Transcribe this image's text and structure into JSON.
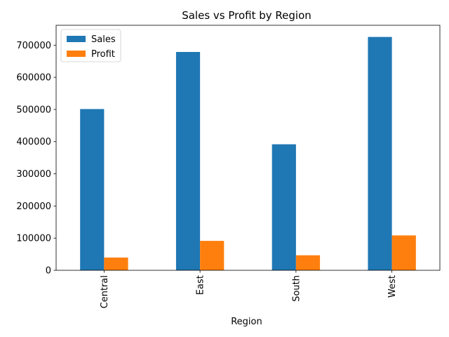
{
  "chart_data": {
    "type": "bar",
    "title": "Sales vs Profit by Region",
    "xlabel": "Region",
    "ylabel": "",
    "categories": [
      "Central",
      "East",
      "South",
      "West"
    ],
    "series": [
      {
        "name": "Sales",
        "values": [
          501240,
          678781,
          391722,
          725458
        ],
        "color": "#1f77b4"
      },
      {
        "name": "Profit",
        "values": [
          39706,
          91523,
          46749,
          108418
        ],
        "color": "#ff7f0e"
      }
    ],
    "ylim": [
      0,
      761731
    ],
    "yticks": [
      0,
      100000,
      200000,
      300000,
      400000,
      500000,
      600000,
      700000
    ],
    "yticklabels": [
      "0",
      "100000",
      "200000",
      "300000",
      "400000",
      "500000",
      "600000",
      "700000"
    ],
    "grid": false,
    "legend": "upper-left"
  }
}
